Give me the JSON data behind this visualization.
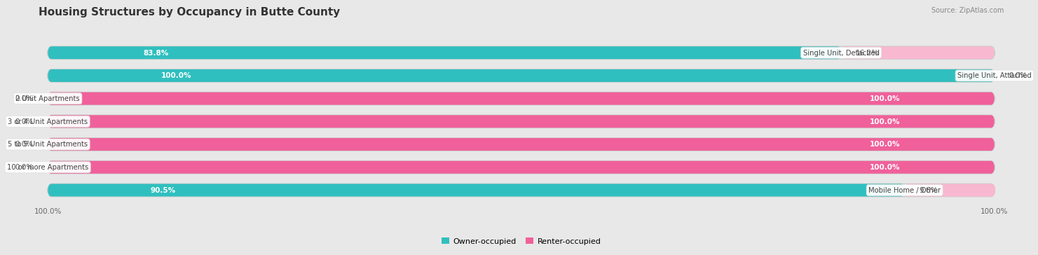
{
  "title": "Housing Structures by Occupancy in Butte County",
  "source": "Source: ZipAtlas.com",
  "categories": [
    "Single Unit, Detached",
    "Single Unit, Attached",
    "2 Unit Apartments",
    "3 or 4 Unit Apartments",
    "5 to 9 Unit Apartments",
    "10 or more Apartments",
    "Mobile Home / Other"
  ],
  "owner_pct": [
    83.8,
    100.0,
    0.0,
    0.0,
    0.0,
    0.0,
    90.5
  ],
  "renter_pct": [
    16.2,
    0.0,
    100.0,
    100.0,
    100.0,
    100.0,
    9.6
  ],
  "owner_color": "#30bfbf",
  "renter_color": "#f0609a",
  "owner_color_light": "#90d8e0",
  "renter_color_light": "#f8b8d0",
  "bg_color": "#e8e8e8",
  "bar_bg": "#ffffff",
  "title_fontsize": 11,
  "label_fontsize": 7.5,
  "bar_height": 0.55,
  "pct_fontsize": 7.5
}
